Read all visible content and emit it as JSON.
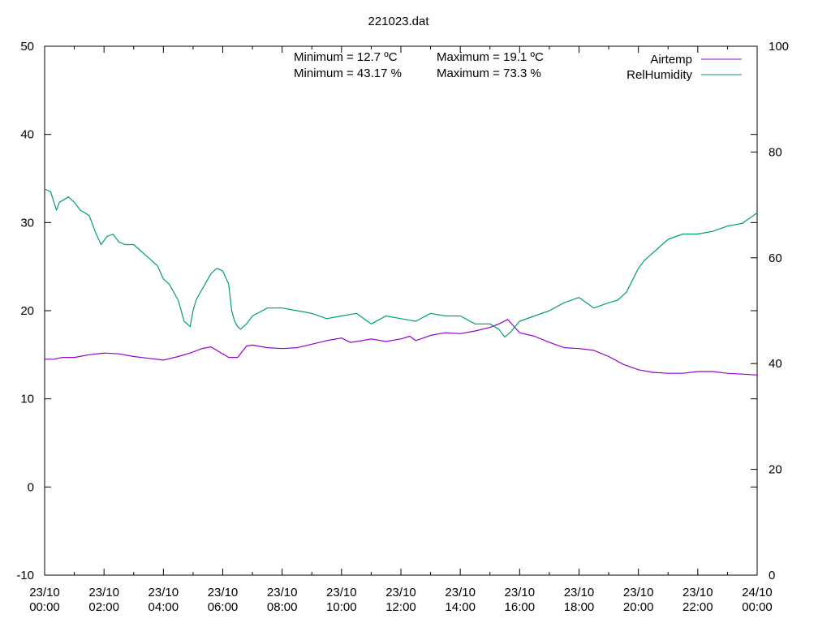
{
  "chart_data": {
    "type": "line",
    "title": "221023.dat",
    "y1lim": [
      -10,
      50
    ],
    "y1ticks": [
      -10,
      0,
      10,
      20,
      30,
      40,
      50
    ],
    "y2lim": [
      0,
      100
    ],
    "y2ticks": [
      0,
      20,
      40,
      60,
      80,
      100
    ],
    "xlim": [
      "23/10 00:00",
      "24/10 00:00"
    ],
    "xticks": [
      {
        "hour": 0,
        "day": "23/10",
        "time": "00:00"
      },
      {
        "hour": 2,
        "day": "23/10",
        "time": "02:00"
      },
      {
        "hour": 4,
        "day": "23/10",
        "time": "04:00"
      },
      {
        "hour": 6,
        "day": "23/10",
        "time": "06:00"
      },
      {
        "hour": 8,
        "day": "23/10",
        "time": "08:00"
      },
      {
        "hour": 10,
        "day": "23/10",
        "time": "10:00"
      },
      {
        "hour": 12,
        "day": "23/10",
        "time": "12:00"
      },
      {
        "hour": 14,
        "day": "23/10",
        "time": "14:00"
      },
      {
        "hour": 16,
        "day": "23/10",
        "time": "16:00"
      },
      {
        "hour": 18,
        "day": "23/10",
        "time": "18:00"
      },
      {
        "hour": 20,
        "day": "23/10",
        "time": "20:00"
      },
      {
        "hour": 22,
        "day": "23/10",
        "time": "22:00"
      },
      {
        "hour": 24,
        "day": "24/10",
        "time": "00:00"
      }
    ],
    "grid": false,
    "legend_position": "top-right",
    "annotations": {
      "temp_min": "Minimum = 12.7 ºC",
      "temp_max": "Maximum = 19.1 ºC",
      "hum_min": "Minimum = 43.17 %",
      "hum_max": "Maximum = 73.3 %"
    },
    "series": [
      {
        "name": "Airtemp",
        "axis": "y1",
        "color": "#9400d3",
        "x": [
          0,
          0.3,
          0.6,
          1.0,
          1.5,
          2.0,
          2.5,
          3.0,
          3.5,
          4.0,
          4.5,
          4.9,
          5.3,
          5.6,
          5.9,
          6.2,
          6.5,
          6.8,
          7.0,
          7.5,
          8.0,
          8.5,
          9.0,
          9.5,
          10.0,
          10.3,
          10.7,
          11.0,
          11.5,
          12.0,
          12.3,
          12.5,
          13.0,
          13.5,
          14.0,
          14.5,
          15.0,
          15.3,
          15.6,
          16.0,
          16.5,
          17.0,
          17.5,
          18.0,
          18.5,
          19.0,
          19.5,
          20.0,
          20.5,
          21.0,
          21.5,
          22.0,
          22.5,
          23.0,
          23.5,
          24.0
        ],
        "values": [
          14.5,
          14.5,
          14.7,
          14.7,
          15.0,
          15.2,
          15.1,
          14.8,
          14.6,
          14.4,
          14.8,
          15.2,
          15.7,
          15.9,
          15.3,
          14.7,
          14.7,
          16.0,
          16.1,
          15.8,
          15.7,
          15.8,
          16.2,
          16.6,
          16.9,
          16.4,
          16.6,
          16.8,
          16.5,
          16.8,
          17.1,
          16.6,
          17.2,
          17.5,
          17.4,
          17.7,
          18.1,
          18.5,
          19.0,
          17.5,
          17.1,
          16.4,
          15.8,
          15.7,
          15.5,
          14.8,
          13.9,
          13.3,
          13.0,
          12.9,
          12.9,
          13.1,
          13.1,
          12.9,
          12.8,
          12.7
        ]
      },
      {
        "name": "RelHumidity",
        "axis": "y2",
        "color": "#009e73",
        "x": [
          0,
          0.2,
          0.4,
          0.5,
          0.8,
          1.0,
          1.2,
          1.5,
          1.7,
          1.9,
          2.1,
          2.3,
          2.5,
          2.7,
          3.0,
          3.2,
          3.5,
          3.8,
          4.0,
          4.2,
          4.5,
          4.7,
          4.9,
          5.0,
          5.1,
          5.2,
          5.4,
          5.6,
          5.8,
          6.0,
          6.2,
          6.3,
          6.4,
          6.5,
          6.6,
          6.8,
          7.0,
          7.5,
          8.0,
          8.5,
          9.0,
          9.5,
          10.0,
          10.5,
          11.0,
          11.5,
          12.0,
          12.5,
          13.0,
          13.5,
          14.0,
          14.5,
          15.0,
          15.3,
          15.5,
          15.7,
          16.0,
          16.5,
          17.0,
          17.5,
          18.0,
          18.5,
          19.0,
          19.3,
          19.6,
          20.0,
          20.2,
          20.3,
          20.5,
          21.0,
          21.5,
          22.0,
          22.5,
          23.0,
          23.5,
          24.0
        ],
        "values": [
          73.0,
          72.5,
          69.0,
          70.5,
          71.5,
          70.5,
          69.0,
          68.0,
          65.0,
          62.5,
          64.0,
          64.5,
          63.0,
          62.5,
          62.5,
          61.5,
          60.0,
          58.5,
          56.0,
          55.0,
          52.0,
          48.0,
          47.0,
          50.0,
          52.0,
          53.0,
          55.0,
          57.0,
          58.0,
          57.5,
          55.0,
          50.0,
          48.0,
          47.0,
          46.5,
          47.5,
          49.0,
          50.5,
          50.5,
          50.0,
          49.5,
          48.5,
          49.0,
          49.5,
          47.5,
          49.0,
          48.5,
          48.0,
          49.5,
          49.0,
          49.0,
          47.5,
          47.5,
          46.5,
          45.0,
          46.0,
          48.0,
          49.0,
          50.0,
          51.5,
          52.5,
          50.5,
          51.5,
          52.0,
          53.5,
          58.0,
          59.5,
          60.0,
          61.0,
          63.5,
          64.5,
          64.5,
          65.0,
          66.0,
          66.5,
          68.5
        ]
      }
    ]
  }
}
